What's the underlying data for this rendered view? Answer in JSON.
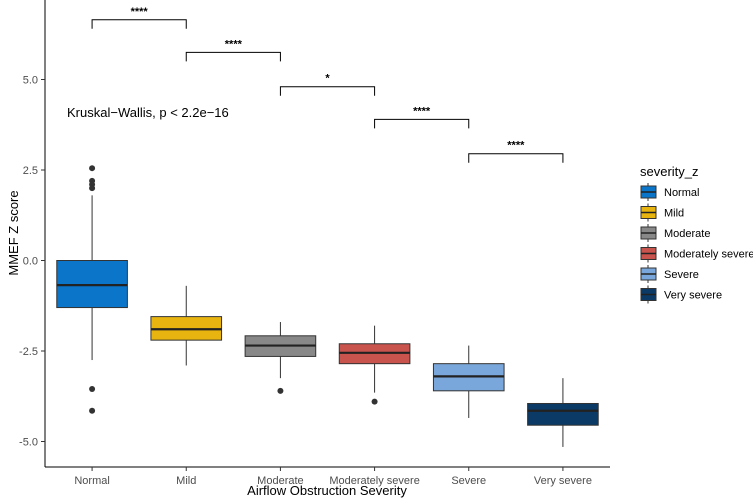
{
  "chart_data": {
    "type": "boxplot",
    "xlabel": "Airflow Obstruction Severity",
    "ylabel": "MMEF Z score",
    "ylim": [
      -5.7,
      7.0
    ],
    "yticks": [
      5.0,
      2.5,
      0.0,
      -2.5,
      -5.0
    ],
    "ytick_labels": [
      "5.0",
      "2.5",
      "0.0",
      "-2.5",
      "-5.0"
    ],
    "annotation": "Kruskal−Wallis, p < 2.2e−16",
    "categories": [
      "Normal",
      "Mild",
      "Moderate",
      "Moderately severe",
      "Severe",
      "Very severe"
    ],
    "boxes": [
      {
        "category": "Normal",
        "whisker_low": -2.75,
        "q1": -1.3,
        "median": -0.68,
        "q3": 0.0,
        "whisker_high": 1.8,
        "outliers": [
          2.55,
          2.2,
          2.1,
          2.0,
          -3.55,
          -4.15
        ],
        "color": "#0a75c9"
      },
      {
        "category": "Mild",
        "whisker_low": -2.9,
        "q1": -2.2,
        "median": -1.9,
        "q3": -1.55,
        "whisker_high": -0.7,
        "outliers": [],
        "color": "#e8b40f"
      },
      {
        "category": "Moderate",
        "whisker_low": -3.25,
        "q1": -2.65,
        "median": -2.35,
        "q3": -2.08,
        "whisker_high": -1.7,
        "outliers": [
          -3.6
        ],
        "color": "#888888"
      },
      {
        "category": "Moderately severe",
        "whisker_low": -3.65,
        "q1": -2.85,
        "median": -2.55,
        "q3": -2.3,
        "whisker_high": -1.8,
        "outliers": [
          -3.9
        ],
        "color": "#c9534d"
      },
      {
        "category": "Severe",
        "whisker_low": -4.35,
        "q1": -3.6,
        "median": -3.2,
        "q3": -2.85,
        "whisker_high": -2.35,
        "outliers": [],
        "color": "#7aa7db"
      },
      {
        "category": "Very severe",
        "whisker_low": -5.15,
        "q1": -4.55,
        "median": -4.15,
        "q3": -3.95,
        "whisker_high": -3.25,
        "outliers": [],
        "color": "#0b3a66"
      }
    ],
    "comparisons": [
      {
        "from": 0,
        "to": 1,
        "label": "****",
        "y": 6.65
      },
      {
        "from": 1,
        "to": 2,
        "label": "****",
        "y": 5.75
      },
      {
        "from": 2,
        "to": 3,
        "label": "*",
        "y": 4.8
      },
      {
        "from": 3,
        "to": 4,
        "label": "****",
        "y": 3.9
      },
      {
        "from": 4,
        "to": 5,
        "label": "****",
        "y": 2.95
      }
    ],
    "legend": {
      "title": "severity_z",
      "position": "right",
      "items": [
        {
          "label": "Normal",
          "color": "#0a75c9"
        },
        {
          "label": "Mild",
          "color": "#e8b40f"
        },
        {
          "label": "Moderate",
          "color": "#888888"
        },
        {
          "label": "Moderately severe",
          "color": "#c9534d"
        },
        {
          "label": "Severe",
          "color": "#7aa7db"
        },
        {
          "label": "Very severe",
          "color": "#0b3a66"
        }
      ]
    }
  }
}
